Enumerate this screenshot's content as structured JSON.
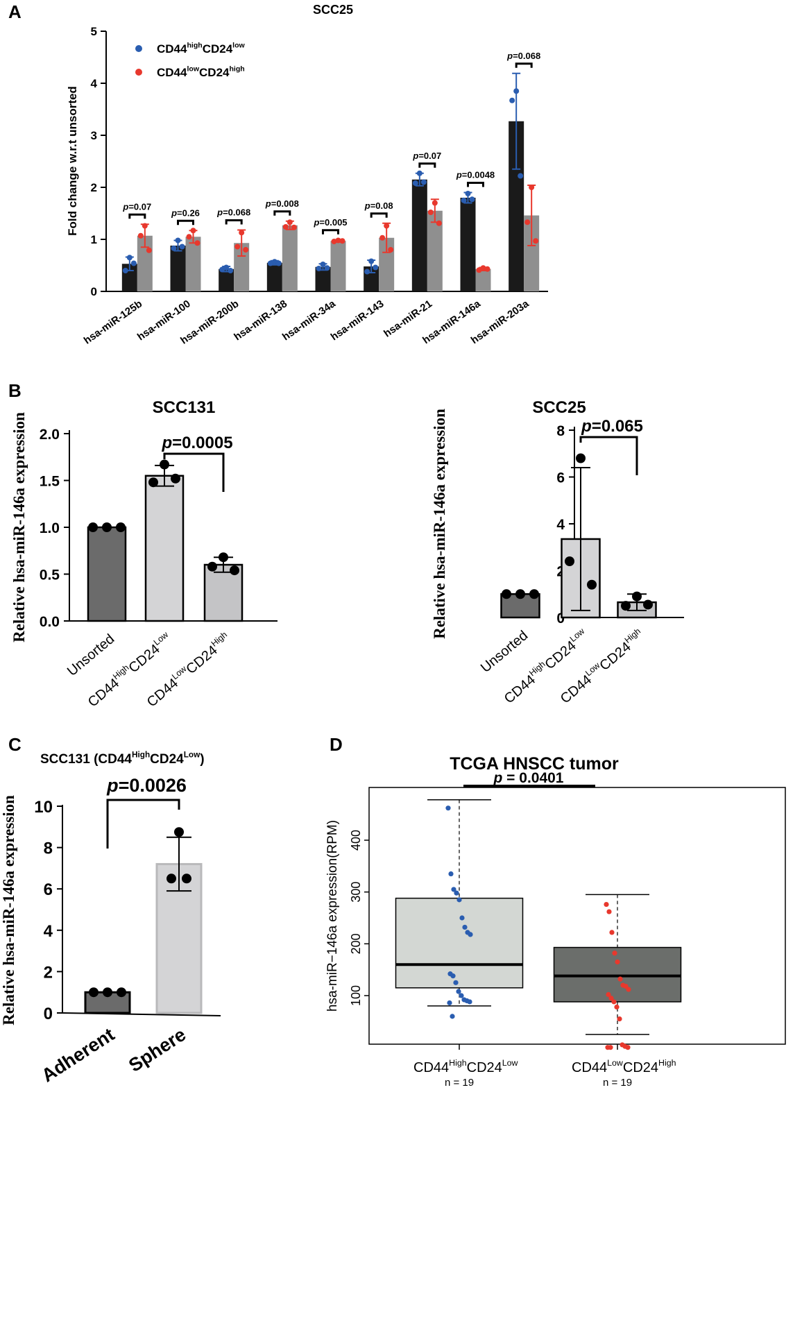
{
  "panel_labels": {
    "a": "A",
    "b": "B",
    "c": "C",
    "d": "D"
  },
  "chart_data": [
    {
      "id": "A",
      "type": "bar",
      "title": "SCC25",
      "ylabel": "Fold change w.r.t unsorted",
      "xlabel": "",
      "ylim": [
        0,
        5
      ],
      "yticks": [
        "0",
        "1",
        "2",
        "3",
        "4",
        "5"
      ],
      "categories": [
        "hsa-miR-125b",
        "hsa-miR-100",
        "hsa-miR-200b",
        "hsa-miR-138",
        "hsa-miR-34a",
        "hsa-miR-143",
        "hsa-miR-21",
        "hsa-miR-146a",
        "hsa-miR-203a"
      ],
      "legend": [
        {
          "base": "CD44",
          "sup1": "high",
          "mid": "CD24",
          "sup2": "low",
          "color": "#2a5db0"
        },
        {
          "base": "CD44",
          "sup1": "low",
          "mid": "CD24",
          "sup2": "high",
          "color": "#e8382d"
        }
      ],
      "series": [
        {
          "name": "CD44highCD24low",
          "bar_color": "#1a1a1a",
          "dot_color": "#2a5db0",
          "values": [
            0.53,
            0.88,
            0.43,
            0.55,
            0.47,
            0.48,
            2.15,
            1.8,
            3.27
          ],
          "errors": [
            0.13,
            0.1,
            0.05,
            0.04,
            0.06,
            0.12,
            0.12,
            0.1,
            0.92
          ],
          "points": [
            [
              0.65,
              0.4,
              0.54
            ],
            [
              0.98,
              0.83,
              0.86
            ],
            [
              0.46,
              0.42,
              0.4
            ],
            [
              0.57,
              0.54,
              0.54
            ],
            [
              0.52,
              0.44,
              0.45
            ],
            [
              0.58,
              0.38,
              0.46
            ],
            [
              2.27,
              2.08,
              2.1
            ],
            [
              1.88,
              1.75,
              1.77
            ],
            [
              3.85,
              3.67,
              2.22
            ]
          ]
        },
        {
          "name": "CD44lowCD24high",
          "bar_color": "#8f8f8f",
          "dot_color": "#e8382d",
          "values": [
            1.07,
            1.05,
            0.93,
            1.27,
            0.97,
            1.03,
            1.55,
            0.43,
            1.46
          ],
          "errors": [
            0.22,
            0.12,
            0.25,
            0.08,
            0.02,
            0.28,
            0.22,
            0.03,
            0.58
          ],
          "points": [
            [
              1.26,
              1.07,
              0.79
            ],
            [
              1.17,
              1.05,
              0.93
            ],
            [
              1.13,
              0.86,
              0.8
            ],
            [
              1.33,
              1.24,
              1.23
            ],
            [
              0.98,
              0.96,
              0.97
            ],
            [
              1.26,
              1.03,
              0.8
            ],
            [
              1.7,
              1.52,
              1.31
            ],
            [
              0.45,
              0.41,
              0.43
            ],
            [
              2.0,
              1.33,
              0.97
            ]
          ]
        }
      ],
      "pvalues": [
        {
          "label": "=0.07",
          "index": 0
        },
        {
          "label": "=0.26",
          "index": 1
        },
        {
          "label": "=0.068",
          "index": 2
        },
        {
          "label": "=0.008",
          "index": 3
        },
        {
          "label": "=0.005",
          "index": 4
        },
        {
          "label": "=0.08",
          "index": 5
        },
        {
          "label": "=0.07",
          "index": 6
        },
        {
          "label": "=0.0048",
          "index": 7
        },
        {
          "label": "=0.068",
          "index": 8
        }
      ]
    },
    {
      "id": "B-left",
      "type": "bar",
      "title": "SCC131",
      "ylabel": "Relative hsa-miR-146a expression",
      "xlabel": "",
      "ylim": [
        0,
        2.0
      ],
      "yticks": [
        "0.0",
        "0.5",
        "1.0",
        "1.5",
        "2.0"
      ],
      "categories": [
        "Unsorted",
        "CD44HighCD24Low",
        "CD44LowCD24High"
      ],
      "category_parts": [
        {
          "base": "Unsorted"
        },
        {
          "base": "CD44",
          "sup1": "High",
          "mid": "CD24",
          "sup2": "Low"
        },
        {
          "base": "CD44",
          "sup1": "Low",
          "mid": "CD24",
          "sup2": "High"
        }
      ],
      "values": [
        1.0,
        1.55,
        0.6
      ],
      "errors": [
        0.0,
        0.11,
        0.08
      ],
      "bar_colors": [
        "#6b6b6b",
        "#d4d4d6",
        "#c4c4c6"
      ],
      "points": [
        [
          1.0,
          1.0,
          1.0
        ],
        [
          1.67,
          1.48,
          1.52
        ],
        [
          0.68,
          0.58,
          0.54
        ]
      ],
      "pvalue": {
        "label": "=0.0005",
        "from": 1,
        "to": 2
      }
    },
    {
      "id": "B-right",
      "type": "bar",
      "title": "SCC25",
      "ylabel": "Relative hsa-miR-146a expression",
      "xlabel": "",
      "ylim": [
        0,
        8
      ],
      "yticks": [
        "0",
        "2",
        "4",
        "6",
        "8"
      ],
      "categories": [
        "Unsorted",
        "CD44HighCD24Low",
        "CD44LowCD24High"
      ],
      "category_parts": [
        {
          "base": "Unsorted"
        },
        {
          "base": "CD44",
          "sup1": "High",
          "mid": "CD24",
          "sup2": "Low"
        },
        {
          "base": "CD44",
          "sup1": "Low",
          "mid": "CD24",
          "sup2": "High"
        }
      ],
      "values": [
        1.0,
        3.35,
        0.65
      ],
      "errors": [
        0.0,
        3.05,
        0.35
      ],
      "bar_colors": [
        "#6b6b6b",
        "#d4d4d6",
        "#c4c4c6"
      ],
      "points": [
        [
          1.0,
          1.0,
          1.0
        ],
        [
          6.8,
          2.4,
          1.4
        ],
        [
          0.9,
          0.5,
          0.55
        ]
      ],
      "pvalue": {
        "label": "=0.065",
        "from": 1,
        "to": 2
      }
    },
    {
      "id": "C",
      "type": "bar",
      "title": "SCC131 (CD44HighCD24Low)",
      "title_parts": {
        "pre": "SCC131 (CD44",
        "sup1": "High",
        "mid": "CD24",
        "sup2": "Low",
        "post": ")"
      },
      "ylabel": "Relative hsa-miR-146a expression",
      "xlabel": "",
      "ylim": [
        0,
        10
      ],
      "yticks": [
        "0",
        "2",
        "4",
        "6",
        "8",
        "10"
      ],
      "categories": [
        "Adherent",
        "Sphere"
      ],
      "values": [
        1.0,
        7.2
      ],
      "errors": [
        0.0,
        1.3
      ],
      "bar_colors": [
        "#6b6b6b",
        "#d4d4d6"
      ],
      "points": [
        [
          1.0,
          1.0,
          1.0
        ],
        [
          8.75,
          6.5,
          6.5
        ]
      ],
      "pvalue": {
        "label": "=0.0026",
        "from": 0,
        "to": 1
      }
    },
    {
      "id": "D",
      "type": "box",
      "title": "TCGA HNSCC tumor",
      "ylabel": "hsa-miR−146a  expression(RPM)",
      "xlabel": "",
      "ylim": [
        0,
        480
      ],
      "yticks": [
        "100",
        "200",
        "300",
        "400"
      ],
      "ytick_values": [
        100,
        200,
        300,
        400
      ],
      "categories": [
        "CD44HighCD24Low",
        "CD44LowCD24High"
      ],
      "groups": [
        {
          "base": "CD44",
          "sup1": "High",
          "mid": "CD24",
          "sup2": "Low",
          "n": "n = 19",
          "fill": "#d3d7d3",
          "dot_color": "#2a5db0",
          "whisker_low": 80,
          "q1": 115,
          "median": 160,
          "q3": 288,
          "whisker_high": 478,
          "points": [
            462,
            335,
            305,
            298,
            285,
            250,
            232,
            222,
            218,
            142,
            138,
            125,
            108,
            100,
            92,
            90,
            88,
            86,
            60
          ]
        },
        {
          "base": "CD44",
          "sup1": "Low",
          "mid": "CD24",
          "sup2": "High",
          "n": "n = 19",
          "fill": "#6b6e6b",
          "dot_color": "#e8382d",
          "whisker_low": 25,
          "q1": 88,
          "median": 138,
          "q3": 193,
          "whisker_high": 295,
          "points": [
            276,
            262,
            222,
            182,
            165,
            132,
            120,
            118,
            112,
            102,
            95,
            88,
            78,
            55,
            5,
            2,
            0,
            0,
            0
          ]
        }
      ],
      "pvalue": {
        "label": "= 0.0401"
      }
    }
  ]
}
